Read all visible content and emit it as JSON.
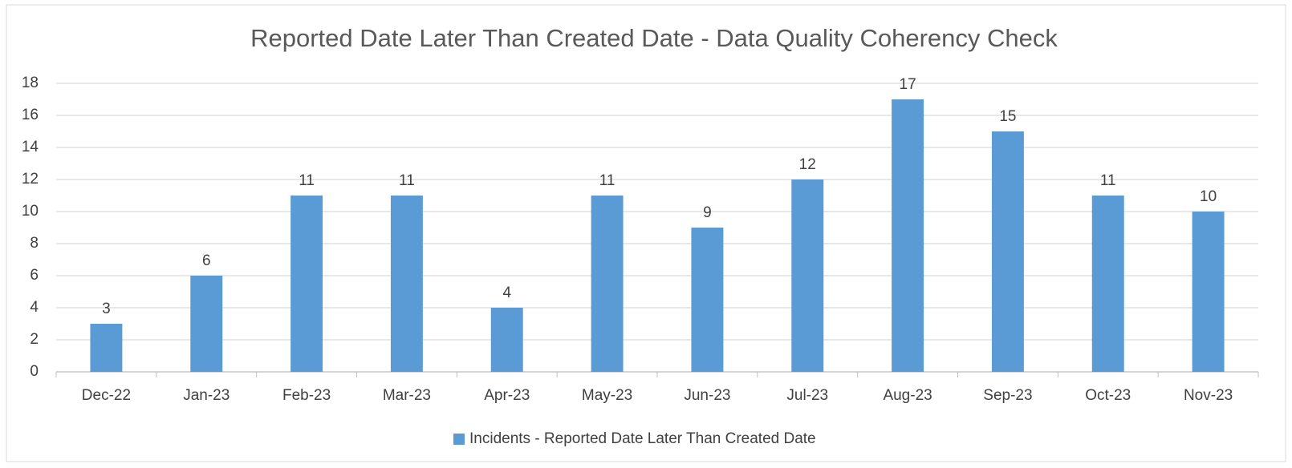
{
  "chart_data": {
    "type": "bar",
    "title": "Reported Date Later Than Created Date - Data Quality Coherency Check",
    "categories": [
      "Dec-22",
      "Jan-23",
      "Feb-23",
      "Mar-23",
      "Apr-23",
      "May-23",
      "Jun-23",
      "Jul-23",
      "Aug-23",
      "Sep-23",
      "Oct-23",
      "Nov-23"
    ],
    "series": [
      {
        "name": "Incidents - Reported Date Later Than Created Date",
        "color": "#5b9bd5",
        "values": [
          3,
          6,
          11,
          11,
          4,
          11,
          9,
          12,
          17,
          15,
          11,
          10
        ]
      }
    ],
    "ylim": [
      0,
      18
    ],
    "yticks": [
      0,
      2,
      4,
      6,
      8,
      10,
      12,
      14,
      16,
      18
    ],
    "grid": true,
    "legend": "bottom",
    "data_labels": true
  }
}
